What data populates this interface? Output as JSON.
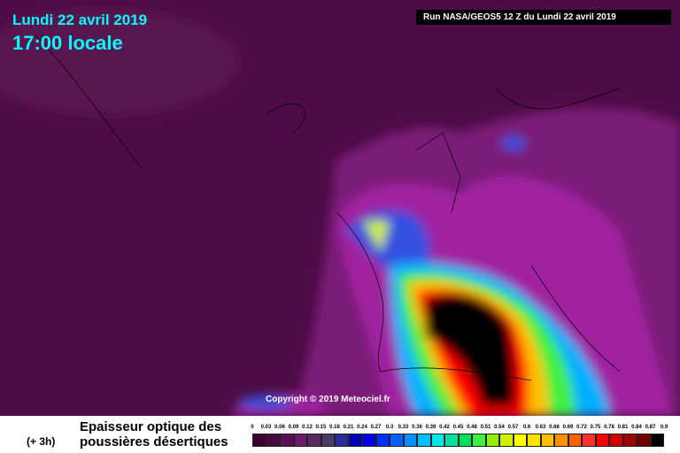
{
  "header": {
    "date": "Lundi 22 avril 2019",
    "time": "17:00 locale",
    "run": "Run NASA/GEOS5 12 Z du Lundi 22 avril 2019"
  },
  "copyright": "Copyright © 2019 Meteociel.fr",
  "legend": {
    "lead": "(+ 3h)",
    "title_line1": "Epaisseur optique des",
    "title_line2": "poussières désertiques",
    "labels": [
      "0",
      "0.03",
      "0.06",
      "0.09",
      "0.12",
      "0.15",
      "0.18",
      "0.21",
      "0.24",
      "0.27",
      "0.3",
      "0.33",
      "0.36",
      "0.39",
      "0.42",
      "0.45",
      "0.48",
      "0.51",
      "0.54",
      "0.57",
      "0.6",
      "0.63",
      "0.66",
      "0.69",
      "0.72",
      "0.75",
      "0.78",
      "0.81",
      "0.84",
      "0.87",
      "0.9"
    ],
    "colors": [
      "#3c0032",
      "#4a0842",
      "#5a1056",
      "#6a1a6a",
      "#5a2a5e",
      "#4a3a6a",
      "#2a2a9a",
      "#0000b8",
      "#0000e0",
      "#0030ff",
      "#0060ff",
      "#0090ff",
      "#00c0ff",
      "#00e8e8",
      "#00e0a0",
      "#00e060",
      "#40f040",
      "#90f000",
      "#d0f000",
      "#ffff00",
      "#ffe000",
      "#ffc000",
      "#ff9000",
      "#ff6000",
      "#ff3030",
      "#ff0000",
      "#d00000",
      "#a00000",
      "#700000",
      "#000000"
    ]
  }
}
